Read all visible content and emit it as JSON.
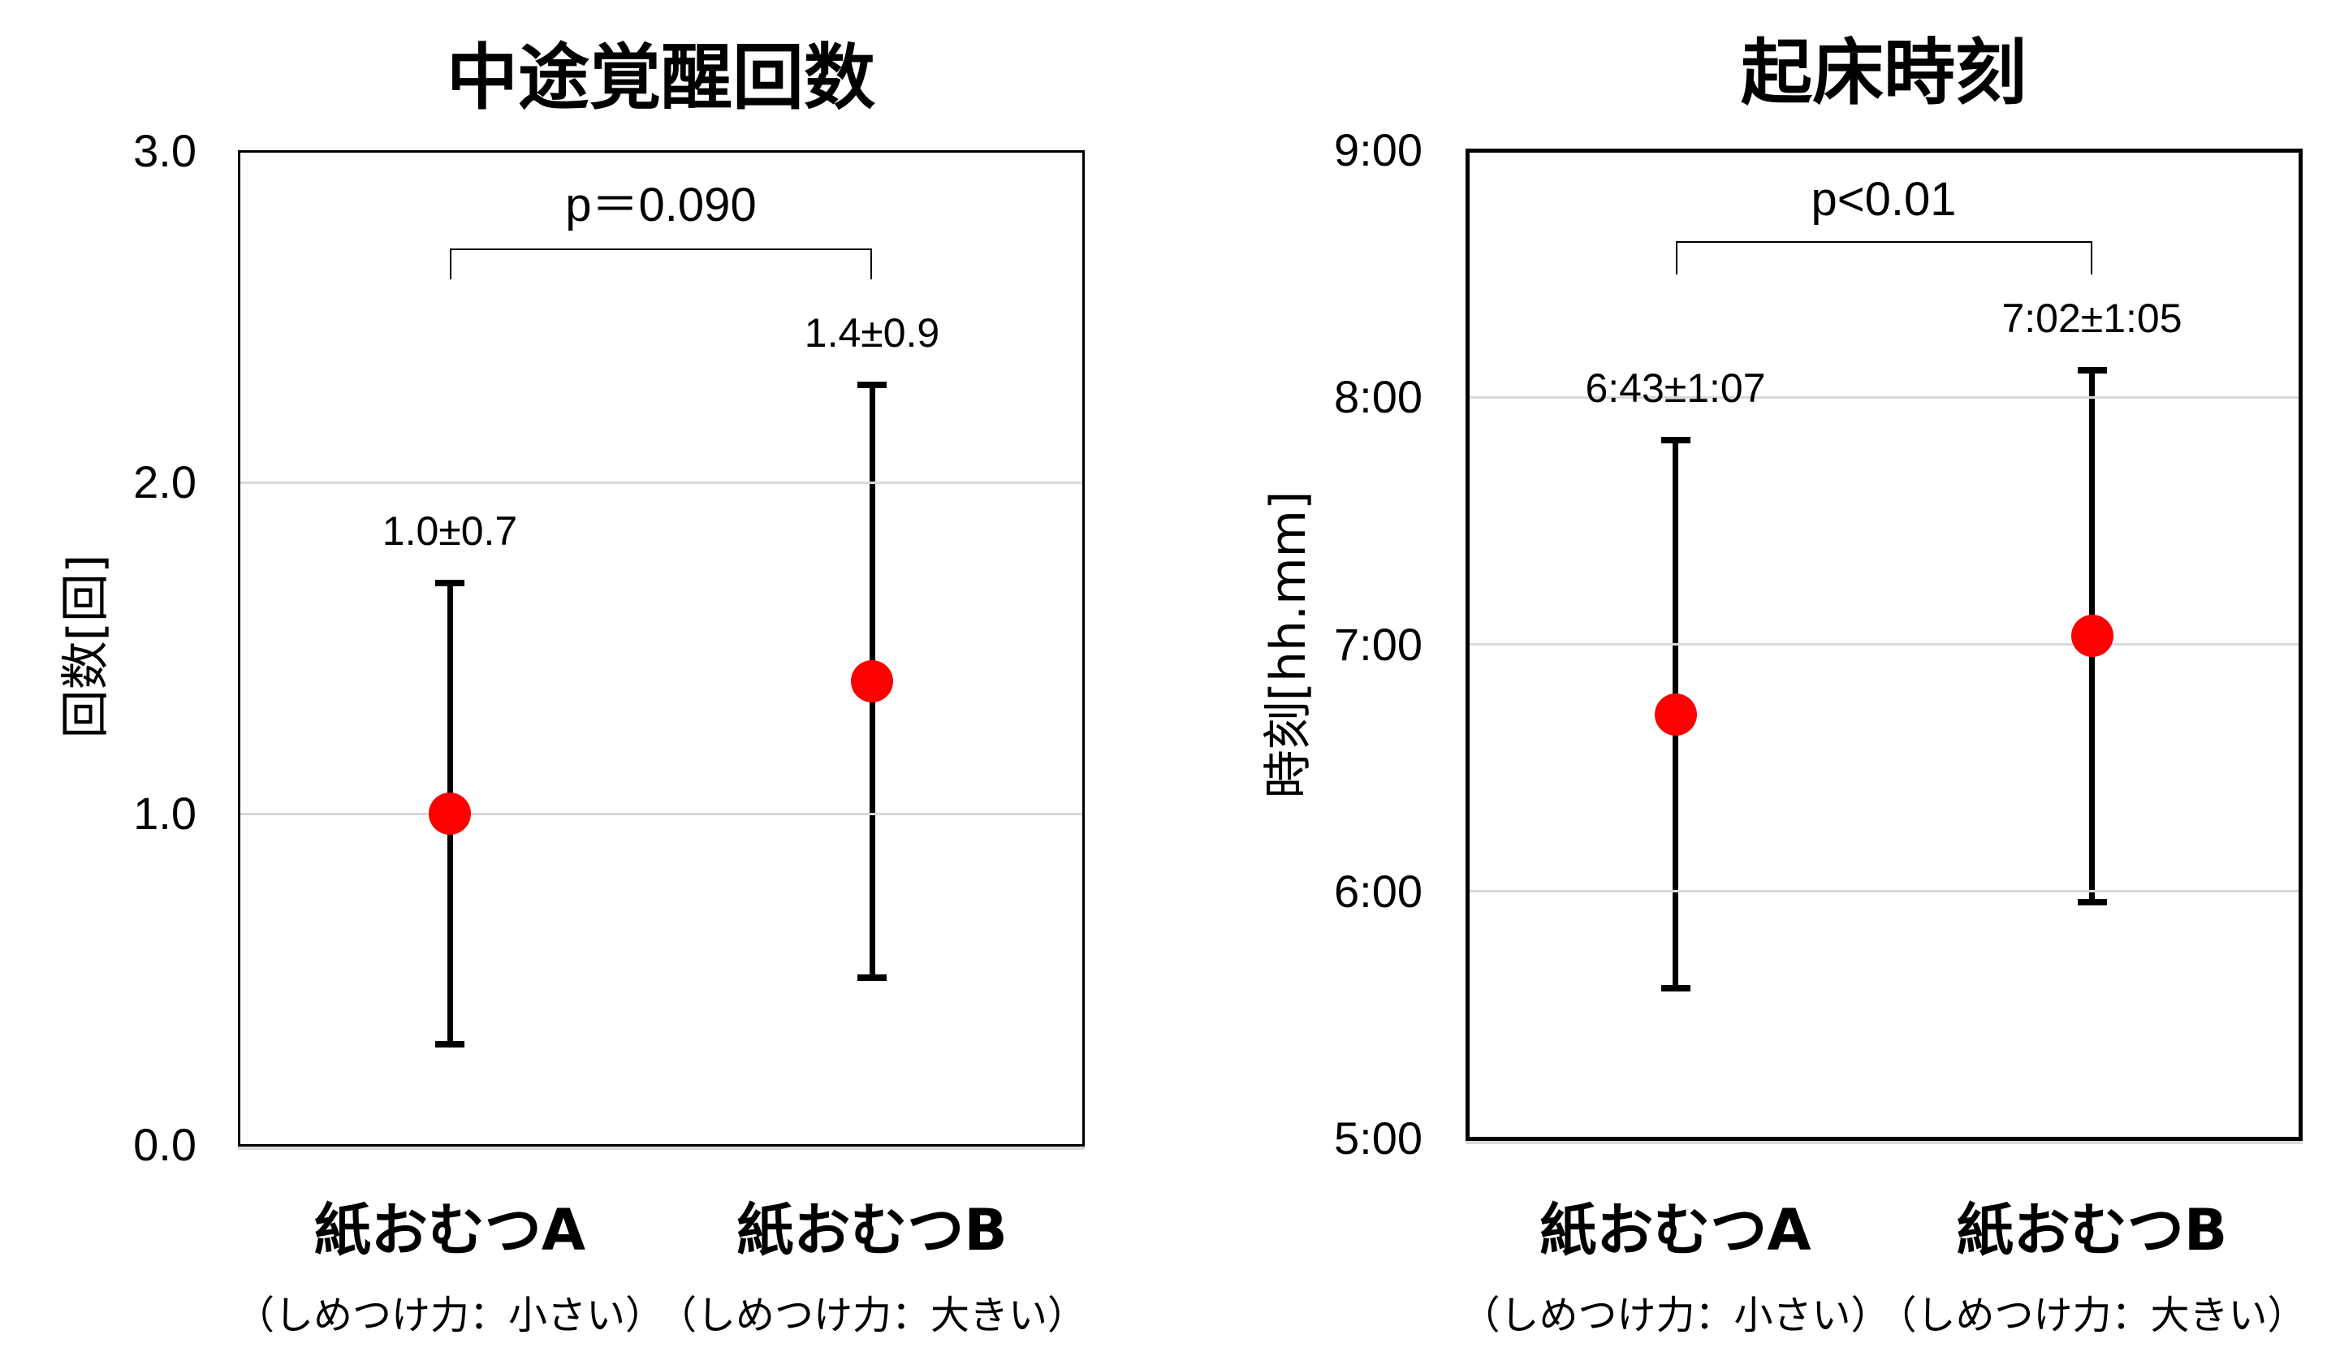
{
  "colors": {
    "marker": "#FF0000",
    "gridline": "#D9D9D9",
    "axis": "#000000",
    "background": "#FFFFFF"
  },
  "chart_data": [
    {
      "type": "scatter",
      "title": "中途覚醒回数",
      "xlabel": "",
      "ylabel": "回数[回]",
      "categories": [
        "紙おむつA",
        "紙おむつB"
      ],
      "category_sublabels": [
        "（しめつけ力：小さい）",
        "（しめつけ力：大きい）"
      ],
      "series": [
        {
          "values": [
            1.0,
            1.4
          ],
          "error": [
            0.7,
            0.9
          ],
          "color": "#FF0000",
          "marker": "circle"
        }
      ],
      "data_labels": [
        "1.0±0.7",
        "1.4±0.9"
      ],
      "ylim": [
        0,
        3
      ],
      "yticks": [
        0,
        1,
        2,
        3
      ],
      "ytick_labels": [
        "0.0",
        "1.0",
        "2.0",
        "3.0"
      ],
      "grid": true,
      "legend": "none",
      "significance": {
        "label": "p＝0.090",
        "between": [
          0,
          1
        ]
      }
    },
    {
      "type": "scatter",
      "title": "起床時刻",
      "xlabel": "",
      "ylabel": "時刻[hh.mm]",
      "categories": [
        "紙おむつA",
        "紙おむつB"
      ],
      "category_sublabels": [
        "（しめつけ力：小さい）",
        "（しめつけ力：大きい）"
      ],
      "y_unit": "hours",
      "series": [
        {
          "values": [
            6.7167,
            7.0333
          ],
          "values_hhmm": [
            "6:43",
            "7:02"
          ],
          "error": [
            1.1167,
            1.0833
          ],
          "error_hhmm": [
            "1:07",
            "1:05"
          ],
          "color": "#FF0000",
          "marker": "circle"
        }
      ],
      "data_labels": [
        "6:43±1:07",
        "7:02±1:05"
      ],
      "ylim": [
        5,
        9
      ],
      "yticks": [
        5,
        6,
        7,
        8,
        9
      ],
      "ytick_labels": [
        "5:00",
        "6:00",
        "7:00",
        "8:00",
        "9:00"
      ],
      "grid": true,
      "legend": "none",
      "significance": {
        "label": "p<0.01",
        "between": [
          0,
          1
        ]
      }
    }
  ]
}
